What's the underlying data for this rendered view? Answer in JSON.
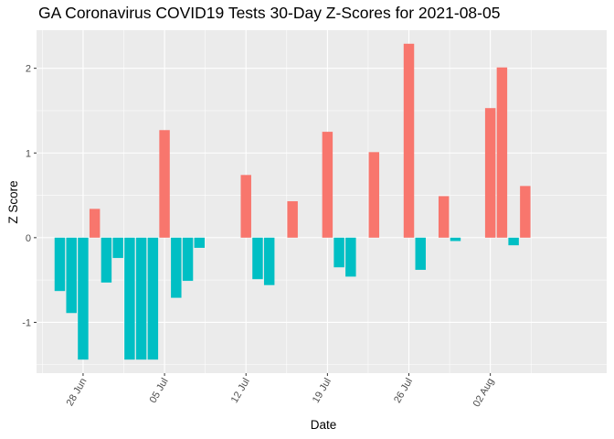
{
  "chart_data": {
    "type": "bar",
    "title": "GA Coronavirus COVID19 Tests 30-Day Z-Scores for 2021-08-05",
    "xlabel": "Date",
    "ylabel": "Z Score",
    "ylim": [
      -1.6,
      2.45
    ],
    "y_ticks": [
      -1,
      0,
      1,
      2
    ],
    "x_range": [
      "2021-06-24",
      "2021-08-12"
    ],
    "x_ticks": [
      {
        "date": "2021-06-28",
        "label": "28 Jun"
      },
      {
        "date": "2021-07-05",
        "label": "05 Jul"
      },
      {
        "date": "2021-07-12",
        "label": "12 Jul"
      },
      {
        "date": "2021-07-19",
        "label": "19 Jul"
      },
      {
        "date": "2021-07-26",
        "label": "26 Jul"
      },
      {
        "date": "2021-08-02",
        "label": "02 Aug"
      }
    ],
    "colors": {
      "positive": "#F8766D",
      "negative": "#00BFC4",
      "panel": "#EBEBEB",
      "grid": "#FFFFFF"
    },
    "points": [
      {
        "date": "2021-06-26",
        "value": -0.63
      },
      {
        "date": "2021-06-27",
        "value": -0.89
      },
      {
        "date": "2021-06-28",
        "value": -1.44
      },
      {
        "date": "2021-06-29",
        "value": 0.34
      },
      {
        "date": "2021-06-30",
        "value": -0.53
      },
      {
        "date": "2021-07-01",
        "value": -0.24
      },
      {
        "date": "2021-07-02",
        "value": -1.44
      },
      {
        "date": "2021-07-03",
        "value": -1.44
      },
      {
        "date": "2021-07-04",
        "value": -1.44
      },
      {
        "date": "2021-07-05",
        "value": 1.27
      },
      {
        "date": "2021-07-06",
        "value": -0.71
      },
      {
        "date": "2021-07-07",
        "value": -0.51
      },
      {
        "date": "2021-07-08",
        "value": -0.12
      },
      {
        "date": "2021-07-12",
        "value": 0.74
      },
      {
        "date": "2021-07-13",
        "value": -0.49
      },
      {
        "date": "2021-07-14",
        "value": -0.56
      },
      {
        "date": "2021-07-16",
        "value": 0.43
      },
      {
        "date": "2021-07-19",
        "value": 1.25
      },
      {
        "date": "2021-07-20",
        "value": -0.35
      },
      {
        "date": "2021-07-21",
        "value": -0.46
      },
      {
        "date": "2021-07-23",
        "value": 1.01
      },
      {
        "date": "2021-07-26",
        "value": 2.29
      },
      {
        "date": "2021-07-27",
        "value": -0.38
      },
      {
        "date": "2021-07-29",
        "value": 0.49
      },
      {
        "date": "2021-07-30",
        "value": -0.04
      },
      {
        "date": "2021-08-02",
        "value": 1.53
      },
      {
        "date": "2021-08-03",
        "value": 2.01
      },
      {
        "date": "2021-08-04",
        "value": -0.09
      },
      {
        "date": "2021-08-05",
        "value": 0.61
      }
    ]
  }
}
